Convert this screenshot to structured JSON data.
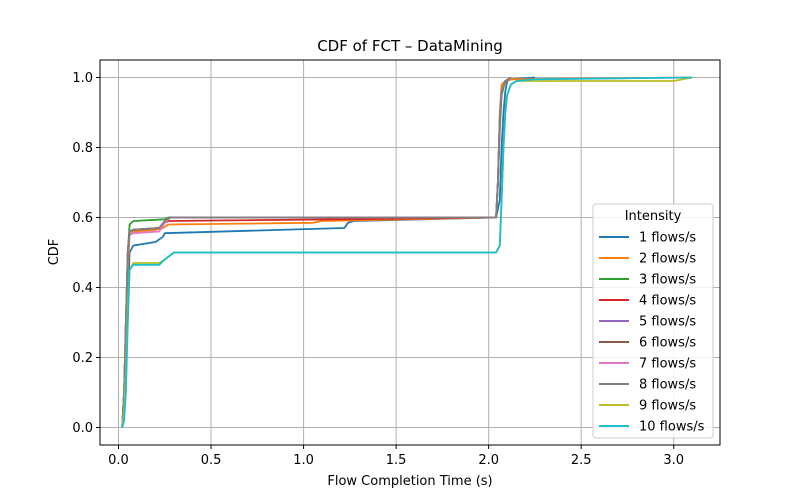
{
  "chart_data": {
    "type": "line",
    "title": "CDF of FCT – DataMining",
    "xlabel": "Flow Completion Time (s)",
    "ylabel": "CDF",
    "xlim": [
      -0.1,
      3.25
    ],
    "ylim": [
      -0.05,
      1.05
    ],
    "xticks": [
      0.0,
      0.5,
      1.0,
      1.5,
      2.0,
      2.5,
      3.0
    ],
    "xtick_labels": [
      "0.0",
      "0.5",
      "1.0",
      "1.5",
      "2.0",
      "2.5",
      "3.0"
    ],
    "yticks": [
      0.0,
      0.2,
      0.4,
      0.6,
      0.8,
      1.0
    ],
    "ytick_labels": [
      "0.0",
      "0.2",
      "0.4",
      "0.6",
      "0.8",
      "1.0"
    ],
    "grid": true,
    "legend": {
      "title": "Intensity",
      "placement": "lower-right"
    },
    "series": [
      {
        "name": "1 flows/s",
        "color": "#1f77b4",
        "x": [
          0.02,
          0.03,
          0.04,
          0.05,
          0.06,
          0.08,
          0.2,
          0.24,
          0.25,
          1.22,
          1.24,
          1.27,
          2.04,
          2.06,
          2.07,
          2.08,
          2.09,
          2.1,
          2.12,
          2.25
        ],
        "y": [
          0.0,
          0.1,
          0.15,
          0.35,
          0.5,
          0.52,
          0.53,
          0.545,
          0.555,
          0.57,
          0.585,
          0.59,
          0.6,
          0.65,
          0.8,
          0.9,
          0.96,
          0.99,
          0.995,
          1.0
        ]
      },
      {
        "name": "2 flows/s",
        "color": "#ff7f0e",
        "x": [
          0.02,
          0.03,
          0.04,
          0.05,
          0.06,
          0.08,
          0.2,
          0.24,
          0.27,
          1.05,
          1.1,
          2.04,
          2.05,
          2.06,
          2.07,
          2.09,
          2.12,
          3.1
        ],
        "y": [
          0.0,
          0.1,
          0.2,
          0.45,
          0.55,
          0.56,
          0.565,
          0.57,
          0.58,
          0.585,
          0.59,
          0.6,
          0.7,
          0.9,
          0.98,
          0.99,
          0.995,
          1.0
        ]
      },
      {
        "name": "3 flows/s",
        "color": "#2ca02c",
        "x": [
          0.02,
          0.03,
          0.04,
          0.05,
          0.06,
          0.08,
          0.25,
          0.27,
          2.04,
          2.05,
          2.06,
          2.07,
          2.09,
          2.12
        ],
        "y": [
          0.0,
          0.1,
          0.2,
          0.5,
          0.58,
          0.59,
          0.595,
          0.6,
          0.6,
          0.7,
          0.85,
          0.95,
          0.99,
          1.0
        ]
      },
      {
        "name": "4 flows/s",
        "color": "#d62728",
        "x": [
          0.02,
          0.03,
          0.04,
          0.05,
          0.06,
          0.08,
          0.22,
          0.25,
          0.27,
          1.2,
          2.04,
          2.05,
          2.06,
          2.07,
          2.09,
          2.12
        ],
        "y": [
          0.0,
          0.1,
          0.3,
          0.5,
          0.56,
          0.565,
          0.57,
          0.585,
          0.59,
          0.595,
          0.6,
          0.7,
          0.88,
          0.96,
          0.99,
          1.0
        ]
      },
      {
        "name": "5 flows/s",
        "color": "#9467bd",
        "x": [
          0.02,
          0.03,
          0.04,
          0.05,
          0.06,
          0.08,
          0.22,
          0.25,
          0.28,
          2.04,
          2.05,
          2.06,
          2.07,
          2.09,
          2.12
        ],
        "y": [
          0.0,
          0.1,
          0.3,
          0.5,
          0.56,
          0.565,
          0.57,
          0.59,
          0.6,
          0.6,
          0.7,
          0.88,
          0.96,
          0.99,
          1.0
        ]
      },
      {
        "name": "6 flows/s",
        "color": "#8c564b",
        "x": [
          0.02,
          0.03,
          0.04,
          0.05,
          0.06,
          0.08,
          0.22,
          0.25,
          0.28,
          2.04,
          2.05,
          2.06,
          2.07,
          2.09,
          2.12
        ],
        "y": [
          0.0,
          0.1,
          0.3,
          0.5,
          0.56,
          0.565,
          0.57,
          0.59,
          0.6,
          0.6,
          0.7,
          0.88,
          0.96,
          0.99,
          1.0
        ]
      },
      {
        "name": "7 flows/s",
        "color": "#e377c2",
        "x": [
          0.02,
          0.03,
          0.04,
          0.05,
          0.06,
          0.08,
          0.22,
          0.25,
          0.28,
          2.04,
          2.05,
          2.06,
          2.07,
          2.09,
          2.12
        ],
        "y": [
          0.0,
          0.1,
          0.3,
          0.5,
          0.55,
          0.555,
          0.56,
          0.585,
          0.6,
          0.6,
          0.7,
          0.88,
          0.96,
          0.99,
          1.0
        ]
      },
      {
        "name": "8 flows/s",
        "color": "#7f7f7f",
        "x": [
          0.02,
          0.03,
          0.04,
          0.05,
          0.06,
          0.08,
          0.22,
          0.25,
          0.28,
          2.04,
          2.05,
          2.06,
          2.07,
          2.09,
          2.12
        ],
        "y": [
          0.0,
          0.1,
          0.3,
          0.5,
          0.56,
          0.565,
          0.57,
          0.59,
          0.6,
          0.6,
          0.7,
          0.88,
          0.96,
          0.99,
          1.0
        ]
      },
      {
        "name": "9 flows/s",
        "color": "#bcbd22",
        "x": [
          0.02,
          0.03,
          0.04,
          0.05,
          0.06,
          0.08,
          0.22,
          0.25,
          0.3,
          2.04,
          2.06,
          2.07,
          2.08,
          2.09,
          2.1,
          2.12,
          2.15,
          3.0,
          3.1
        ],
        "y": [
          0.0,
          0.05,
          0.15,
          0.35,
          0.45,
          0.47,
          0.47,
          0.48,
          0.5,
          0.5,
          0.52,
          0.65,
          0.8,
          0.9,
          0.95,
          0.98,
          0.99,
          0.99,
          1.0
        ]
      },
      {
        "name": "10 flows/s",
        "color": "#17becf",
        "x": [
          0.02,
          0.03,
          0.04,
          0.05,
          0.06,
          0.08,
          0.22,
          0.25,
          0.3,
          2.04,
          2.06,
          2.07,
          2.08,
          2.09,
          2.1,
          2.12,
          2.15,
          2.25,
          3.1
        ],
        "y": [
          0.0,
          0.02,
          0.1,
          0.3,
          0.45,
          0.465,
          0.465,
          0.48,
          0.5,
          0.5,
          0.52,
          0.65,
          0.8,
          0.9,
          0.95,
          0.98,
          0.99,
          0.995,
          1.0
        ]
      }
    ]
  }
}
